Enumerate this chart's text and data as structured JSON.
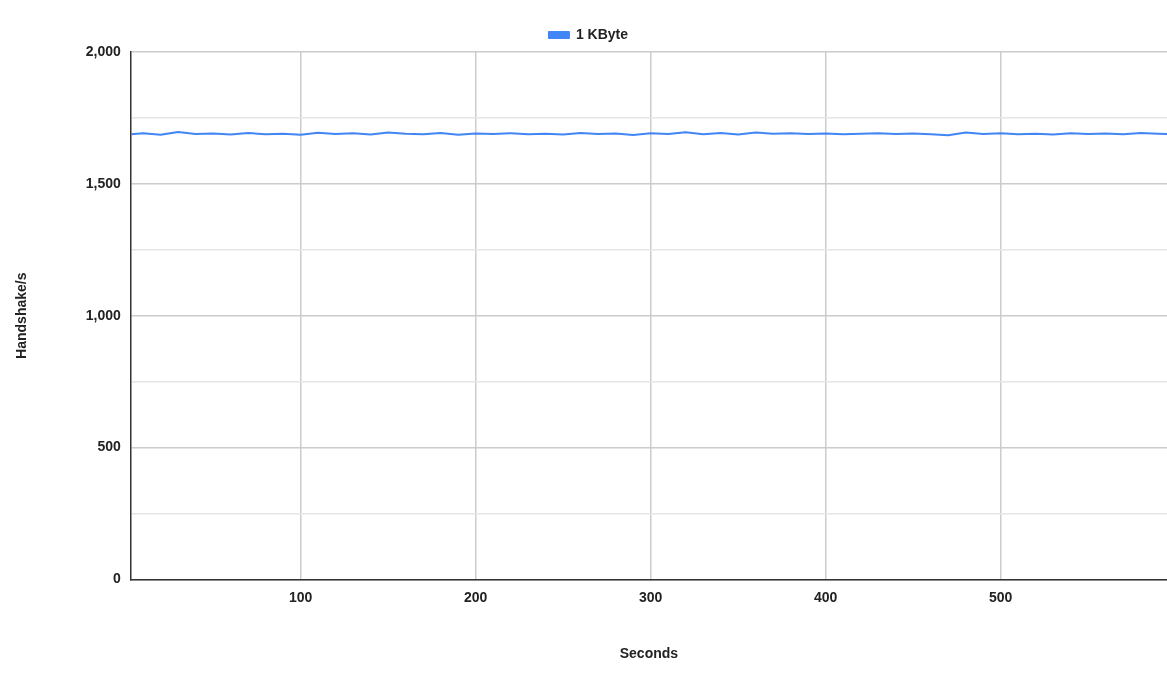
{
  "chart_data": {
    "type": "line",
    "xlabel": "Seconds",
    "ylabel": "Handshake/s",
    "legend": "top",
    "grid": true,
    "marker": "none",
    "xlim": [
      3,
      595
    ],
    "xticks": [
      100,
      200,
      300,
      400,
      500
    ],
    "ylim": [
      0,
      2000
    ],
    "yticks": [
      0,
      {
        "value": 250,
        "label": null
      },
      500,
      {
        "value": 750,
        "label": null
      },
      {
        "value": 1000,
        "label": "1,000"
      },
      {
        "value": 1250,
        "label": null
      },
      {
        "value": 1500,
        "label": "1,500"
      },
      {
        "value": 1750,
        "label": null
      },
      {
        "value": 2000,
        "label": "2,000"
      }
    ],
    "x": [
      3,
      10,
      20,
      30,
      40,
      50,
      60,
      70,
      80,
      90,
      100,
      110,
      120,
      130,
      140,
      150,
      160,
      170,
      180,
      190,
      200,
      210,
      220,
      230,
      240,
      250,
      260,
      270,
      280,
      290,
      300,
      310,
      320,
      330,
      340,
      350,
      360,
      370,
      380,
      390,
      400,
      410,
      420,
      430,
      440,
      450,
      460,
      470,
      480,
      490,
      500,
      510,
      520,
      530,
      540,
      550,
      560,
      570,
      580,
      590,
      595
    ],
    "series": [
      {
        "name": "1 KByte",
        "color": "#4285f4",
        "values": [
          1688,
          1692,
          1686,
          1697,
          1689,
          1691,
          1687,
          1693,
          1688,
          1690,
          1686,
          1694,
          1689,
          1692,
          1687,
          1695,
          1690,
          1688,
          1693,
          1686,
          1691,
          1689,
          1692,
          1688,
          1690,
          1687,
          1693,
          1689,
          1691,
          1685,
          1692,
          1689,
          1696,
          1688,
          1693,
          1687,
          1695,
          1690,
          1692,
          1689,
          1691,
          1688,
          1690,
          1692,
          1689,
          1691,
          1688,
          1684,
          1695,
          1689,
          1692,
          1688,
          1690,
          1687,
          1692,
          1689,
          1691,
          1688,
          1693,
          1690,
          1689
        ]
      }
    ]
  }
}
